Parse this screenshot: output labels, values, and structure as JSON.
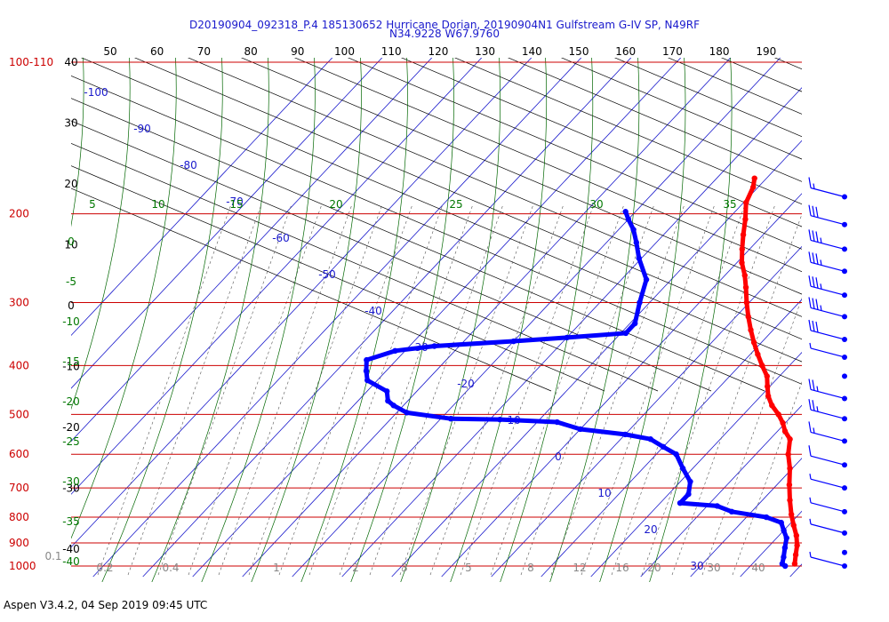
{
  "title_line1": "D20190904_092318_P.4 185130652 Hurricane Dorian, 20190904N1 Gulfstream G-IV SP, N49RF",
  "title_line2": "N34.9228 W67.9760",
  "footer": "Aspen V3.4.2, 04 Sep 2019  09:45 UTC",
  "colors": {
    "temperature": "#ff0000",
    "dewpoint": "#0000ff",
    "isobar": "#cc0000",
    "isotherm": "#1a1acc",
    "dry_adiabat": "#000000",
    "moist_adiabat": "#006600",
    "mixing_ratio": "#006600"
  },
  "chart_data": {
    "type": "scatter",
    "subtype": "skew-t log-p sounding",
    "pressure_levels": [
      {
        "label": "100-110",
        "p": 100
      },
      {
        "label": "200",
        "p": 200
      },
      {
        "label": "300",
        "p": 300
      },
      {
        "label": "400",
        "p": 400
      },
      {
        "label": "500",
        "p": 500
      },
      {
        "label": "600",
        "p": 600
      },
      {
        "label": "700",
        "p": 700
      },
      {
        "label": "800",
        "p": 800
      },
      {
        "label": "900",
        "p": 900
      },
      {
        "label": "1000",
        "p": 1000
      }
    ],
    "top_scale_labels": [
      "50",
      "60",
      "70",
      "80",
      "90",
      "100",
      "110",
      "120",
      "130",
      "140",
      "150",
      "160",
      "170",
      "180",
      "190"
    ],
    "left_scale_labels": [
      "40",
      "30",
      "20",
      "10",
      "0",
      "-10",
      "-20",
      "-30",
      "-40"
    ],
    "isotherm_labels": [
      "-100",
      "-90",
      "-80",
      "-70",
      "-60",
      "-50",
      "-40",
      "-30",
      "-20",
      "-10",
      "0",
      "10",
      "20",
      "30"
    ],
    "theta_e_labels": [
      "5",
      "10",
      "15",
      "20",
      "25",
      "30",
      "35"
    ],
    "moist_labels": [
      "0",
      "-5",
      "-10",
      "-15",
      "-20",
      "-25",
      "-30",
      "-35",
      "-40"
    ],
    "mixing_ratio_labels": [
      "0.1",
      "0.2",
      "0.4",
      "1",
      "2",
      "3",
      "5",
      "8",
      "12",
      "16",
      "20",
      "30",
      "40"
    ],
    "series": [
      {
        "name": "temperature",
        "color": "#ff0000",
        "x": [
          -52.4,
          -51.0,
          -49.5,
          -46.5,
          -44.0,
          -41.5,
          -39.0,
          -36.0,
          -33.5,
          -30.5,
          -27.5,
          -24.5,
          -21.5,
          -18.5,
          -15.5,
          -12.5,
          -10.5,
          -8.5,
          -6.0,
          -3.0,
          -0.5,
          1.5,
          4.0,
          6.5,
          9.5,
          12.5,
          15.5,
          18.5,
          21.0,
          23.5,
          25.5,
          27.0,
          28.5
        ],
        "y": [
          170,
          177,
          190,
          205,
          220,
          235,
          250,
          265,
          280,
          300,
          320,
          340,
          360,
          380,
          400,
          420,
          440,
          460,
          480,
          500,
          520,
          540,
          560,
          600,
          640,
          690,
          740,
          790,
          830,
          870,
          910,
          950,
          990
        ]
      },
      {
        "name": "dewpoint",
        "color": "#0000ff",
        "x": [
          -72.0,
          -70.0,
          -67.0,
          -64.0,
          -60.5,
          -55.0,
          -52.0,
          -49.0,
          -49.0,
          -60.0,
          -70.0,
          -85.0,
          -92.0,
          -96.0,
          -94.0,
          -92.0,
          -86.0,
          -84.0,
          -82.0,
          -78.0,
          -68.0,
          -58.0,
          -46.0,
          -40.0,
          -30.0,
          -24.0,
          -20.0,
          -16.0,
          -12.0,
          -8.0,
          -6.0,
          -6.0,
          2.0,
          6.0,
          14.0,
          18.0,
          20.0,
          22.0,
          23.5,
          25.0,
          26.0,
          27.0
        ],
        "y": [
          198,
          205,
          215,
          228,
          245,
          270,
          300,
          330,
          345,
          352,
          358,
          366,
          374,
          390,
          410,
          428,
          450,
          470,
          480,
          496,
          510,
          512,
          518,
          535,
          548,
          560,
          580,
          600,
          640,
          680,
          720,
          750,
          760,
          780,
          800,
          820,
          850,
          880,
          920,
          960,
          990,
          1000
        ]
      }
    ],
    "wind_barbs": [
      {
        "p": 185,
        "speed_kt": 15
      },
      {
        "p": 210,
        "speed_kt": 30
      },
      {
        "p": 235,
        "speed_kt": 35
      },
      {
        "p": 260,
        "speed_kt": 35
      },
      {
        "p": 290,
        "speed_kt": 35
      },
      {
        "p": 320,
        "speed_kt": 35
      },
      {
        "p": 355,
        "speed_kt": 30
      },
      {
        "p": 385,
        "speed_kt": 5
      },
      {
        "p": 420,
        "speed_kt": 0
      },
      {
        "p": 465,
        "speed_kt": 25
      },
      {
        "p": 510,
        "speed_kt": 25
      },
      {
        "p": 565,
        "speed_kt": 15
      },
      {
        "p": 630,
        "speed_kt": 10
      },
      {
        "p": 700,
        "speed_kt": 5
      },
      {
        "p": 780,
        "speed_kt": 5
      },
      {
        "p": 860,
        "speed_kt": 5
      },
      {
        "p": 940,
        "speed_kt": 0
      },
      {
        "p": 1000,
        "speed_kt": 5
      }
    ]
  }
}
